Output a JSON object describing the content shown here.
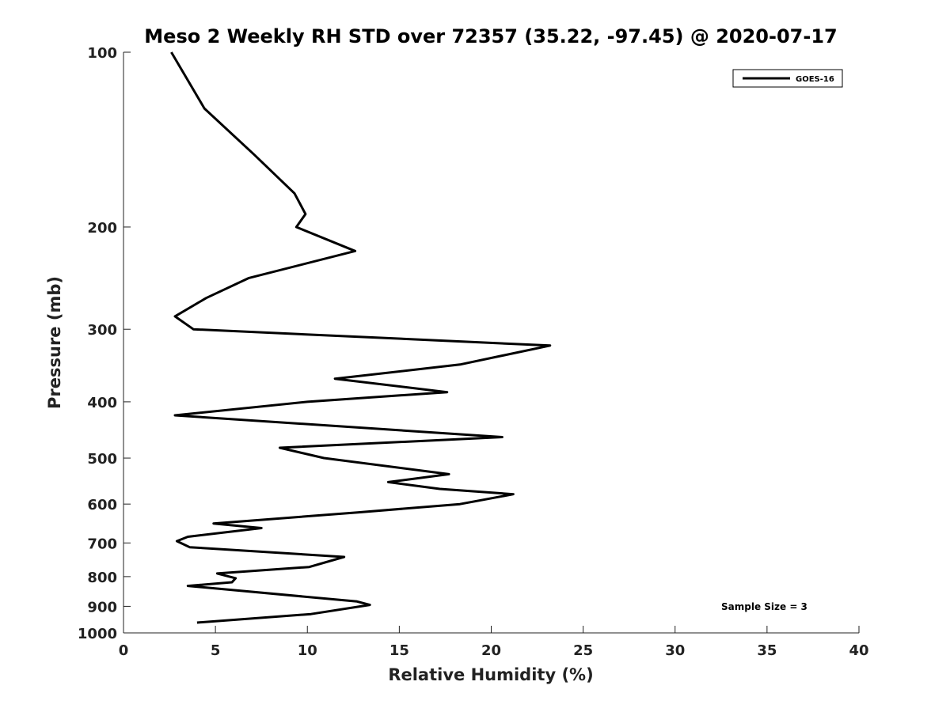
{
  "chart_data": {
    "type": "line",
    "title": "Meso 2 Weekly RH STD over 72357 (35.22, -97.45) @ 2020-07-17",
    "xlabel": "Relative Humidity (%)",
    "ylabel": "Pressure (mb)",
    "xlim": [
      0,
      40
    ],
    "ylim": [
      1000,
      100
    ],
    "yscale": "log",
    "x_ticks": [
      0,
      5,
      10,
      15,
      20,
      25,
      30,
      35,
      40
    ],
    "y_ticks": [
      100,
      200,
      300,
      400,
      500,
      600,
      700,
      800,
      900,
      1000
    ],
    "grid": false,
    "legend_position": "top-right",
    "annotation": "Sample Size = 3",
    "series": [
      {
        "name": "GOES-16",
        "color": "#000000",
        "points": [
          [
            2.6,
            100
          ],
          [
            4.4,
            125
          ],
          [
            7.1,
            150
          ],
          [
            9.3,
            175
          ],
          [
            9.9,
            190
          ],
          [
            9.4,
            200
          ],
          [
            12.6,
            220
          ],
          [
            6.8,
            245
          ],
          [
            4.5,
            265
          ],
          [
            2.8,
            285
          ],
          [
            3.8,
            300
          ],
          [
            23.2,
            320
          ],
          [
            18.3,
            345
          ],
          [
            11.5,
            365
          ],
          [
            17.6,
            385
          ],
          [
            10.0,
            400
          ],
          [
            2.8,
            422
          ],
          [
            20.6,
            460
          ],
          [
            8.5,
            480
          ],
          [
            10.9,
            500
          ],
          [
            17.7,
            533
          ],
          [
            14.4,
            550
          ],
          [
            17.2,
            565
          ],
          [
            21.2,
            577
          ],
          [
            18.3,
            600
          ],
          [
            12.8,
            620
          ],
          [
            4.9,
            648
          ],
          [
            7.5,
            660
          ],
          [
            3.5,
            683
          ],
          [
            2.9,
            695
          ],
          [
            3.6,
            712
          ],
          [
            12.0,
            740
          ],
          [
            10.1,
            770
          ],
          [
            5.1,
            790
          ],
          [
            6.1,
            805
          ],
          [
            5.9,
            818
          ],
          [
            3.5,
            830
          ],
          [
            12.7,
            883
          ],
          [
            13.4,
            895
          ],
          [
            10.2,
            928
          ],
          [
            4.0,
            960
          ]
        ]
      }
    ]
  }
}
